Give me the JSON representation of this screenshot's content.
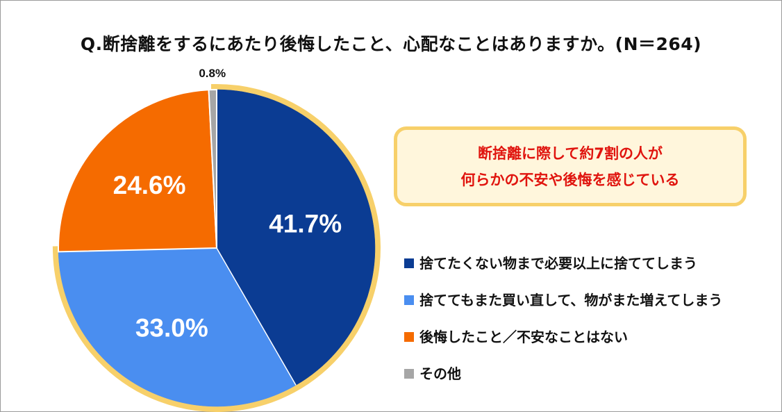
{
  "title": "Q.断捨離をするにあたり後悔したこと、心配なことはありますか。(N＝264)",
  "callout": {
    "line1": "断捨離に際して約7割の人が",
    "line2": "何らかの不安や後悔を感じている"
  },
  "colors": {
    "dark_blue": "#0b3c93",
    "light_blue": "#4a8ef0",
    "orange": "#f56b00",
    "gray": "#a6a6a6",
    "highlight": "#f7d06a",
    "callout_text": "#e0140e"
  },
  "chart_data": {
    "type": "pie",
    "title": "Q.断捨離をするにあたり後悔したこと、心配なことはありますか。(N＝264)",
    "legend_position": "right",
    "slices": [
      {
        "label": "捨てたくない物まで必要以上に捨ててしまう",
        "value": 41.7,
        "display": "41.7%",
        "color": "#0b3c93",
        "highlighted": true
      },
      {
        "label": "捨ててもまた買い直して、物がまた増えてしまう",
        "value": 33.0,
        "display": "33.0%",
        "color": "#4a8ef0",
        "highlighted": true
      },
      {
        "label": "後悔したこと／不安なことはない",
        "value": 24.6,
        "display": "24.6%",
        "color": "#f56b00",
        "highlighted": false
      },
      {
        "label": "その他",
        "value": 0.8,
        "display": "0.8%",
        "color": "#a6a6a6",
        "highlighted": false
      }
    ]
  }
}
